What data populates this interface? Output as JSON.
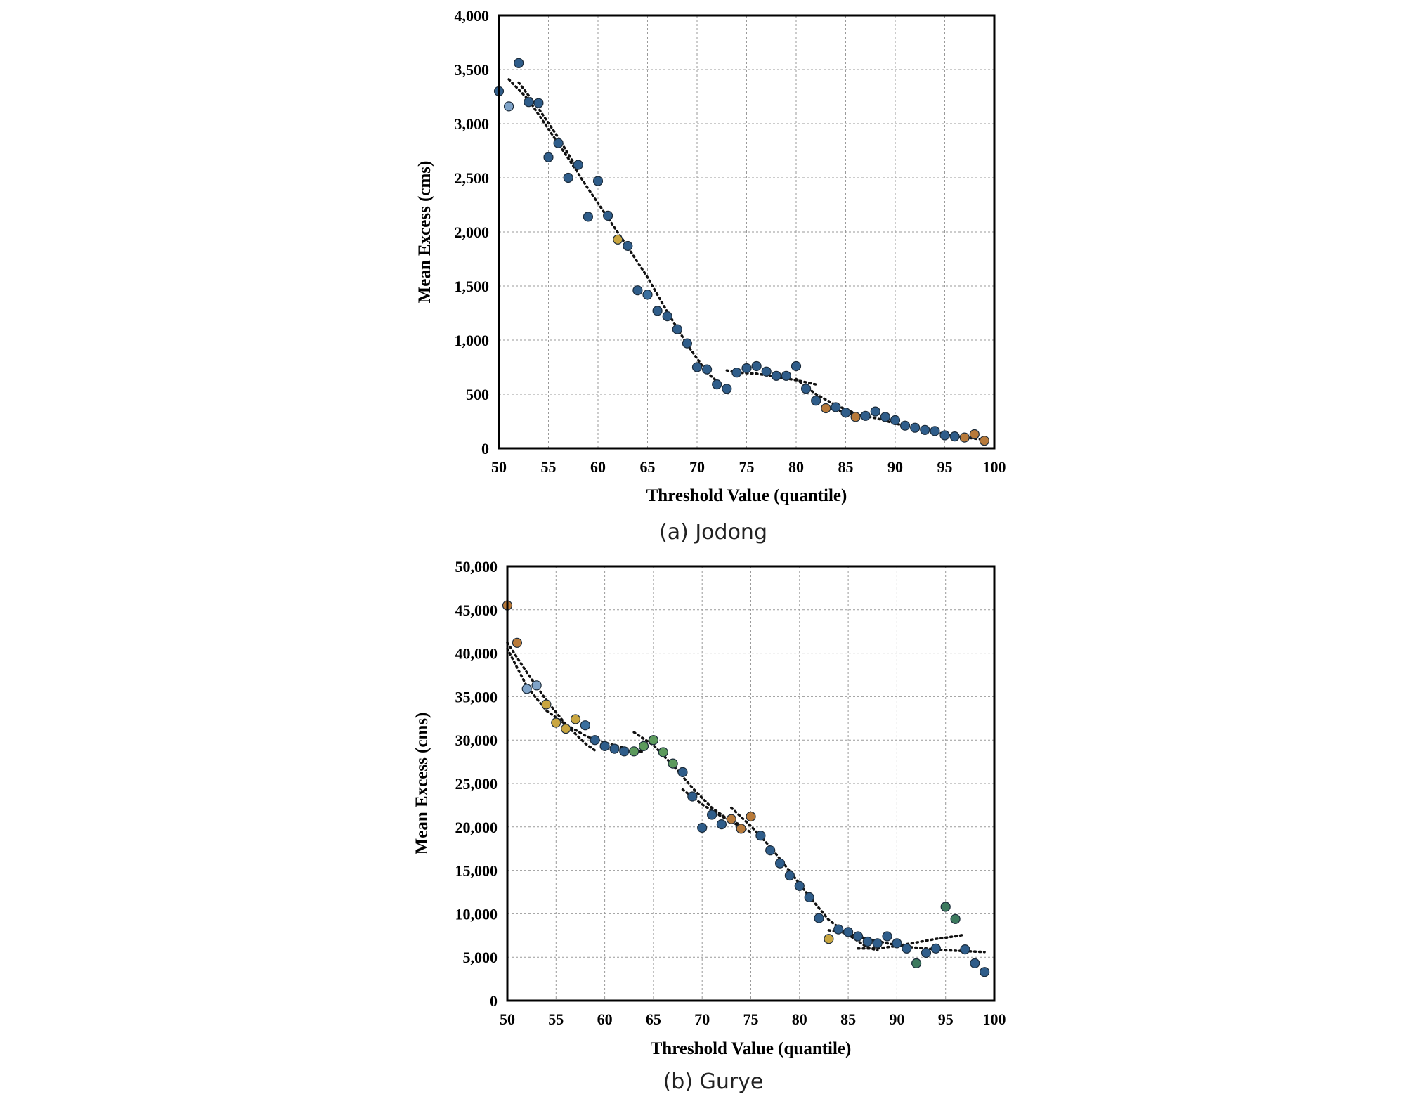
{
  "chart_data": [
    {
      "id": "jodong",
      "type": "scatter",
      "caption": "(a) Jodong",
      "xlabel": "Threshold Value (quantile)",
      "ylabel": "Mean Excess (cms)",
      "xlim": [
        50,
        100
      ],
      "ylim": [
        0,
        4000
      ],
      "xticks": [
        50,
        55,
        60,
        65,
        70,
        75,
        80,
        85,
        90,
        95,
        100
      ],
      "yticks": [
        0,
        500,
        1000,
        1500,
        2000,
        2500,
        3000,
        3500,
        4000
      ],
      "ytick_labels": [
        "0",
        "500",
        "1,000",
        "1,500",
        "2,000",
        "2,500",
        "3,000",
        "3,500",
        "4,000"
      ],
      "grid": true,
      "marker_color": "#2f5d8a",
      "points": [
        [
          50,
          3300,
          "#2f5d8a"
        ],
        [
          51,
          3160,
          "#7fa3c8"
        ],
        [
          52,
          3560,
          "#2f5d8a"
        ],
        [
          53,
          3200,
          "#2f5d8a"
        ],
        [
          54,
          3190,
          "#2f5d8a"
        ],
        [
          55,
          2690,
          "#2f5d8a"
        ],
        [
          56,
          2820,
          "#2f5d8a"
        ],
        [
          57,
          2500,
          "#2f5d8a"
        ],
        [
          58,
          2620,
          "#2f5d8a"
        ],
        [
          59,
          2140,
          "#2f5d8a"
        ],
        [
          60,
          2470,
          "#2f5d8a"
        ],
        [
          61,
          2150,
          "#2f5d8a"
        ],
        [
          62,
          1930,
          "#c9a640"
        ],
        [
          63,
          1870,
          "#2f5d8a"
        ],
        [
          64,
          1460,
          "#2f5d8a"
        ],
        [
          65,
          1420,
          "#3a6f9e"
        ],
        [
          66,
          1270,
          "#2f5d8a"
        ],
        [
          67,
          1220,
          "#2f5d8a"
        ],
        [
          68,
          1100,
          "#2f5d8a"
        ],
        [
          69,
          970,
          "#2f5d8a"
        ],
        [
          70,
          750,
          "#2f5d8a"
        ],
        [
          71,
          730,
          "#2f5d8a"
        ],
        [
          72,
          590,
          "#2f5d8a"
        ],
        [
          73,
          550,
          "#2f5d8a"
        ],
        [
          74,
          700,
          "#2f5d8a"
        ],
        [
          75,
          740,
          "#2f5d8a"
        ],
        [
          76,
          760,
          "#2f5d8a"
        ],
        [
          77,
          710,
          "#2f5d8a"
        ],
        [
          78,
          670,
          "#2f5d8a"
        ],
        [
          79,
          670,
          "#2f5d8a"
        ],
        [
          80,
          760,
          "#2f5d8a"
        ],
        [
          81,
          550,
          "#2f5d8a"
        ],
        [
          82,
          440,
          "#2f5d8a"
        ],
        [
          83,
          370,
          "#b87a3a"
        ],
        [
          84,
          380,
          "#2f5d8a"
        ],
        [
          85,
          330,
          "#2f5d8a"
        ],
        [
          86,
          290,
          "#b87a3a"
        ],
        [
          87,
          300,
          "#2f5d8a"
        ],
        [
          88,
          340,
          "#2f5d8a"
        ],
        [
          89,
          290,
          "#2f5d8a"
        ],
        [
          90,
          260,
          "#2f5d8a"
        ],
        [
          91,
          210,
          "#2f5d8a"
        ],
        [
          92,
          190,
          "#2f5d8a"
        ],
        [
          93,
          170,
          "#2f5d8a"
        ],
        [
          94,
          160,
          "#2f5d8a"
        ],
        [
          95,
          120,
          "#2f5d8a"
        ],
        [
          96,
          110,
          "#2f5d8a"
        ],
        [
          97,
          100,
          "#b87a3a"
        ],
        [
          98,
          130,
          "#b87a3a"
        ],
        [
          99,
          70,
          "#b87a3a"
        ]
      ],
      "trendlines": [
        [
          [
            51,
            3410
          ],
          [
            53,
            3220
          ],
          [
            55,
            2950
          ],
          [
            57,
            2680
          ],
          [
            59,
            2400
          ],
          [
            61,
            2130
          ],
          [
            63,
            1860
          ],
          [
            65,
            1580
          ],
          [
            67,
            1260
          ],
          [
            69,
            960
          ],
          [
            71,
            700
          ],
          [
            72,
            620
          ]
        ],
        [
          [
            52,
            3380
          ],
          [
            54,
            3140
          ],
          [
            56,
            2870
          ],
          [
            58,
            2570
          ]
        ],
        [
          [
            73,
            720
          ],
          [
            74,
            700
          ],
          [
            76,
            690
          ],
          [
            78,
            660
          ],
          [
            80,
            630
          ],
          [
            82,
            590
          ]
        ],
        [
          [
            80,
            640
          ],
          [
            82,
            500
          ],
          [
            84,
            400
          ],
          [
            86,
            320
          ],
          [
            87,
            290
          ]
        ],
        [
          [
            83,
            380
          ],
          [
            85,
            330
          ],
          [
            88,
            280
          ],
          [
            90,
            230
          ],
          [
            92,
            185
          ],
          [
            94,
            150
          ],
          [
            96,
            115
          ],
          [
            98,
            90
          ],
          [
            99,
            80
          ]
        ]
      ]
    },
    {
      "id": "gurye",
      "type": "scatter",
      "caption": "(b) Gurye",
      "xlabel": "Threshold Value (quantile)",
      "ylabel": "Mean Excess (cms)",
      "xlim": [
        50,
        100
      ],
      "ylim": [
        0,
        50000
      ],
      "xticks": [
        50,
        55,
        60,
        65,
        70,
        75,
        80,
        85,
        90,
        95,
        100
      ],
      "yticks": [
        0,
        5000,
        10000,
        15000,
        20000,
        25000,
        30000,
        35000,
        40000,
        45000,
        50000
      ],
      "ytick_labels": [
        "0",
        "5,000",
        "10,000",
        "15,000",
        "20,000",
        "25,000",
        "30,000",
        "35,000",
        "40,000",
        "45,000",
        "50,000"
      ],
      "grid": true,
      "marker_color": "#2f5d8a",
      "points": [
        [
          50,
          45500,
          "#b87a3a"
        ],
        [
          51,
          41200,
          "#b87a3a"
        ],
        [
          52,
          35900,
          "#7fa3c8"
        ],
        [
          53,
          36300,
          "#7fa3c8"
        ],
        [
          54,
          34100,
          "#c9a640"
        ],
        [
          55,
          32000,
          "#c9a640"
        ],
        [
          56,
          31300,
          "#c9a640"
        ],
        [
          57,
          32400,
          "#c9a640"
        ],
        [
          58,
          31700,
          "#3a6f9e"
        ],
        [
          59,
          30000,
          "#2f5d8a"
        ],
        [
          60,
          29300,
          "#2f5d8a"
        ],
        [
          61,
          29000,
          "#2f5d8a"
        ],
        [
          62,
          28700,
          "#2f5d8a"
        ],
        [
          63,
          28700,
          "#5c9a5c"
        ],
        [
          64,
          29300,
          "#5c9a5c"
        ],
        [
          65,
          30000,
          "#5c9a5c"
        ],
        [
          66,
          28600,
          "#5c9a5c"
        ],
        [
          67,
          27300,
          "#5c9a5c"
        ],
        [
          68,
          26300,
          "#2f5d8a"
        ],
        [
          69,
          23500,
          "#2f5d8a"
        ],
        [
          70,
          19900,
          "#2f5d8a"
        ],
        [
          71,
          21400,
          "#2f5d8a"
        ],
        [
          72,
          20300,
          "#2f5d8a"
        ],
        [
          73,
          20900,
          "#b87a3a"
        ],
        [
          74,
          19800,
          "#b87a3a"
        ],
        [
          75,
          21200,
          "#b87a3a"
        ],
        [
          76,
          19000,
          "#2f5d8a"
        ],
        [
          77,
          17300,
          "#2f5d8a"
        ],
        [
          78,
          15800,
          "#2f5d8a"
        ],
        [
          79,
          14400,
          "#2f5d8a"
        ],
        [
          80,
          13200,
          "#2f5d8a"
        ],
        [
          81,
          11900,
          "#2f5d8a"
        ],
        [
          82,
          9500,
          "#2f5d8a"
        ],
        [
          83,
          7100,
          "#c9a640"
        ],
        [
          84,
          8200,
          "#2f5d8a"
        ],
        [
          85,
          7900,
          "#2f5d8a"
        ],
        [
          86,
          7400,
          "#2f5d8a"
        ],
        [
          87,
          6800,
          "#2f5d8a"
        ],
        [
          88,
          6600,
          "#2f5d8a"
        ],
        [
          89,
          7400,
          "#2f5d8a"
        ],
        [
          90,
          6600,
          "#2f5d8a"
        ],
        [
          91,
          6000,
          "#2f5d8a"
        ],
        [
          92,
          4300,
          "#3c7a5e"
        ],
        [
          93,
          5500,
          "#2f5d8a"
        ],
        [
          94,
          6000,
          "#2f5d8a"
        ],
        [
          95,
          10800,
          "#3c7a5e"
        ],
        [
          96,
          9400,
          "#3c7a5e"
        ],
        [
          97,
          5900,
          "#2f5d8a"
        ],
        [
          98,
          4300,
          "#2f5d8a"
        ],
        [
          99,
          3300,
          "#2f5d8a"
        ]
      ],
      "trendlines": [
        [
          [
            50,
            41200
          ],
          [
            52,
            37800
          ],
          [
            54,
            34600
          ],
          [
            56,
            31800
          ],
          [
            58,
            29600
          ],
          [
            59,
            28800
          ]
        ],
        [
          [
            50,
            40500
          ],
          [
            52,
            36200
          ],
          [
            54,
            33400
          ],
          [
            56,
            31800
          ],
          [
            58,
            30500
          ],
          [
            60,
            29700
          ],
          [
            62,
            29100
          ],
          [
            64,
            28600
          ]
        ],
        [
          [
            63,
            30900
          ],
          [
            65,
            29400
          ],
          [
            67,
            27100
          ],
          [
            69,
            24500
          ],
          [
            71,
            22200
          ],
          [
            73,
            20600
          ],
          [
            75,
            19400
          ]
        ],
        [
          [
            68,
            24300
          ],
          [
            70,
            22600
          ],
          [
            72,
            21200
          ],
          [
            74,
            20200
          ]
        ],
        [
          [
            73,
            22200
          ],
          [
            75,
            20100
          ],
          [
            77,
            17700
          ],
          [
            79,
            14900
          ],
          [
            81,
            12000
          ],
          [
            83,
            9300
          ],
          [
            85,
            7600
          ],
          [
            87,
            6100
          ],
          [
            88,
            5800
          ]
        ],
        [
          [
            83,
            8100
          ],
          [
            85,
            7700
          ],
          [
            87,
            7100
          ],
          [
            89,
            6600
          ],
          [
            91,
            6200
          ],
          [
            93,
            6000
          ],
          [
            95,
            5800
          ],
          [
            97,
            5700
          ],
          [
            99,
            5600
          ]
        ],
        [
          [
            86,
            6000
          ],
          [
            88,
            6000
          ],
          [
            90,
            6300
          ],
          [
            92,
            6700
          ],
          [
            94,
            7100
          ],
          [
            96,
            7400
          ],
          [
            97,
            7600
          ]
        ]
      ]
    }
  ]
}
